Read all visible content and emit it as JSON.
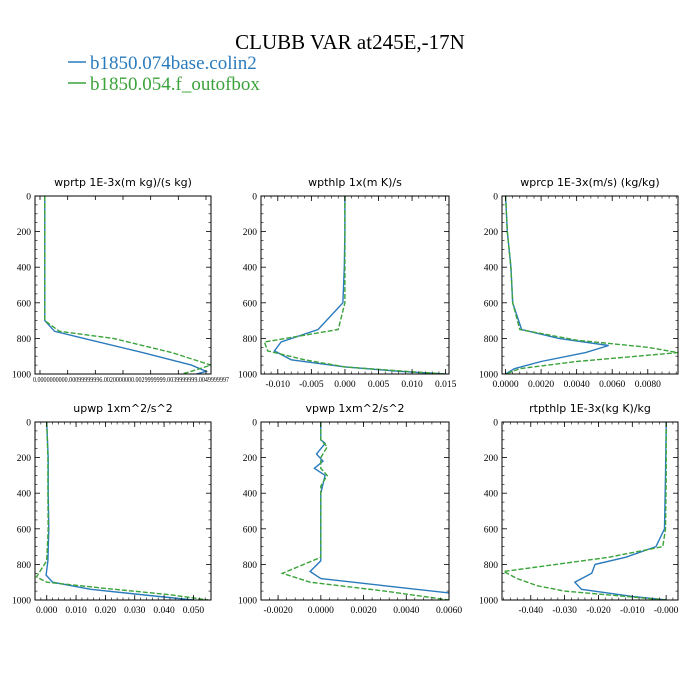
{
  "title": "CLUBB VAR at245E,-17N",
  "colors": {
    "series0": "#2a7bbd",
    "series1": "#3aa33a",
    "frame": "#000000"
  },
  "legend": [
    {
      "label": "b1850.074base.colin2",
      "color": "#2a7bbd"
    },
    {
      "label": "b1850.054.f_outofbox",
      "color": "#3aa33a"
    }
  ],
  "chart_data": [
    {
      "type": "line",
      "title": "wprtp  1E-3x(m kg)/(s kg)",
      "xlabel": "",
      "ylabel": "",
      "xlim": [
        -2e-05,
        0.00034
      ],
      "ylim": [
        1000,
        0
      ],
      "y_reversed": true,
      "yticks": [
        0,
        200,
        400,
        600,
        800,
        1000
      ],
      "xticks": [],
      "xtick_text": "0.0000000000.00099999996.0020000000.0029999999.0039999999.0049999997",
      "series": [
        {
          "name": "b1850.074base.colin2",
          "x": [
            0,
            0,
            0.0,
            2e-05,
            8e-05,
            0.0002,
            0.0003,
            0.00033,
            0.00031
          ],
          "y": [
            0,
            400,
            700,
            760,
            800,
            880,
            950,
            985,
            1000
          ]
        },
        {
          "name": "b1850.054.f_outofbox",
          "x": [
            0,
            0,
            0.0,
            3e-05,
            0.00014,
            0.00026,
            0.00034,
            0.0003,
            0.00028
          ],
          "y": [
            0,
            400,
            700,
            760,
            800,
            880,
            950,
            985,
            1000
          ]
        }
      ]
    },
    {
      "type": "line",
      "title": "wpthlp  1x(m K)/s",
      "xlabel": "",
      "ylabel": "",
      "xlim": [
        -0.0125,
        0.0155
      ],
      "ylim": [
        1000,
        0
      ],
      "y_reversed": true,
      "yticks": [
        0,
        200,
        400,
        600,
        800,
        1000
      ],
      "xticks": [
        "-0.010",
        "-0.005",
        "0.000",
        "0.005",
        "0.010",
        "0.015"
      ],
      "xtick_values": [
        -0.01,
        -0.005,
        0.0,
        0.005,
        0.01,
        0.015
      ],
      "series": [
        {
          "name": "b1850.074base.colin2",
          "x": [
            0.0,
            0.0,
            -0.0001,
            -0.0003,
            -0.004,
            -0.0095,
            -0.0105,
            -0.008,
            0.0,
            0.008,
            0.015
          ],
          "y": [
            0,
            200,
            400,
            600,
            750,
            820,
            870,
            920,
            960,
            985,
            1000
          ]
        },
        {
          "name": "b1850.054.f_outofbox",
          "x": [
            0.0,
            0.0,
            0.0,
            0.0,
            -0.001,
            -0.012,
            -0.0115,
            -0.006,
            0.0,
            0.009,
            0.015
          ],
          "y": [
            0,
            200,
            400,
            600,
            750,
            820,
            870,
            920,
            960,
            985,
            1000
          ]
        }
      ]
    },
    {
      "type": "line",
      "title": "wprcp  1E-3x(m/s) (kg/kg)",
      "xlabel": "",
      "ylabel": "",
      "xlim": [
        -0.0002,
        0.0097
      ],
      "ylim": [
        1000,
        0
      ],
      "y_reversed": true,
      "yticks": [
        0,
        200,
        400,
        600,
        800,
        1000
      ],
      "xticks": [
        "0.0000",
        "0.0020",
        "0.0040",
        "0.0060",
        "0.0080"
      ],
      "xtick_values": [
        0.0,
        0.002,
        0.004,
        0.006,
        0.008
      ],
      "series": [
        {
          "name": "b1850.074base.colin2",
          "x": [
            0.0,
            0.0001,
            0.0003,
            0.0004,
            0.0009,
            0.003,
            0.0058,
            0.0045,
            0.002,
            0.0005,
            0.0
          ],
          "y": [
            0,
            200,
            400,
            600,
            750,
            800,
            840,
            880,
            930,
            970,
            1000
          ]
        },
        {
          "name": "b1850.054.f_outofbox",
          "x": [
            0.0,
            0.0001,
            0.0003,
            0.0004,
            0.0008,
            0.004,
            0.008,
            0.0097,
            0.004,
            0.0008,
            0.0
          ],
          "y": [
            0,
            200,
            400,
            600,
            750,
            810,
            850,
            880,
            930,
            970,
            1000
          ]
        }
      ]
    },
    {
      "type": "line",
      "title": "upwp  1xm^2/s^2",
      "xlabel": "",
      "ylabel": "",
      "xlim": [
        -0.004,
        0.056
      ],
      "ylim": [
        1000,
        0
      ],
      "y_reversed": true,
      "yticks": [
        0,
        200,
        400,
        600,
        800,
        1000
      ],
      "xticks": [
        "0.000",
        "0.010",
        "0.020",
        "0.030",
        "0.040",
        "0.050"
      ],
      "xtick_values": [
        0.0,
        0.01,
        0.02,
        0.03,
        0.04,
        0.05
      ],
      "series": [
        {
          "name": "b1850.074base.colin2",
          "x": [
            0.0,
            0.0005,
            0.0005,
            0.0007,
            0.0004,
            -0.0002,
            0.002,
            0.015,
            0.035,
            0.05
          ],
          "y": [
            0,
            200,
            400,
            600,
            780,
            860,
            900,
            940,
            975,
            1000
          ]
        },
        {
          "name": "b1850.054.f_outofbox",
          "x": [
            0.0,
            0.0004,
            0.0004,
            0.0005,
            0.0,
            -0.0035,
            0.0,
            0.02,
            0.042,
            0.055
          ],
          "y": [
            0,
            200,
            400,
            600,
            780,
            870,
            900,
            935,
            970,
            1000
          ]
        }
      ]
    },
    {
      "type": "line",
      "title": "vpwp  1xm^2/s^2",
      "xlabel": "",
      "ylabel": "",
      "xlim": [
        -0.0028,
        0.006
      ],
      "ylim": [
        1000,
        0
      ],
      "y_reversed": true,
      "yticks": [
        0,
        200,
        400,
        600,
        800,
        1000
      ],
      "xticks": [
        "-0.0020",
        "0.0000",
        "0.0020",
        "0.0040",
        "0.0060"
      ],
      "xtick_values": [
        -0.002,
        0.0,
        0.002,
        0.004,
        0.006
      ],
      "series": [
        {
          "name": "b1850.074base.colin2",
          "x": [
            0.0,
            0.0,
            0.0002,
            -0.0002,
            0.0001,
            -0.0003,
            0.0002,
            0.0,
            0.0,
            -0.0005,
            0.0,
            0.003,
            0.006
          ],
          "y": [
            0,
            100,
            120,
            180,
            220,
            260,
            300,
            400,
            780,
            840,
            880,
            920,
            960
          ]
        },
        {
          "name": "b1850.054.f_outofbox",
          "x": [
            0.0,
            0.0,
            0.0003,
            0.0,
            0.0,
            0.0003,
            0.0,
            0.0,
            0.0,
            -0.0018,
            -0.0005,
            0.003,
            0.006
          ],
          "y": [
            0,
            100,
            140,
            200,
            260,
            300,
            360,
            400,
            760,
            850,
            900,
            950,
            1000
          ]
        }
      ]
    },
    {
      "type": "line",
      "title": "rtpthlp  1E-3x(kg K)/kg",
      "xlabel": "",
      "ylabel": "",
      "xlim": [
        -0.0485,
        0.0035
      ],
      "ylim": [
        1000,
        0
      ],
      "y_reversed": true,
      "yticks": [
        0,
        200,
        400,
        600,
        800,
        1000
      ],
      "xticks": [
        "-0.040",
        "-0.030",
        "-0.020",
        "-0.010",
        "-0.000"
      ],
      "xtick_values": [
        -0.04,
        -0.03,
        -0.02,
        -0.01,
        0.0
      ],
      "series": [
        {
          "name": "b1850.074base.colin2",
          "x": [
            0.0,
            -0.0002,
            -0.0005,
            -0.003,
            -0.012,
            -0.021,
            -0.022,
            -0.027,
            -0.025,
            -0.01,
            0.0
          ],
          "y": [
            0,
            300,
            600,
            700,
            760,
            800,
            850,
            900,
            940,
            980,
            1000
          ]
        },
        {
          "name": "b1850.054.f_outofbox",
          "x": [
            0.0,
            0.0,
            -0.0002,
            -0.001,
            -0.017,
            -0.048,
            -0.044,
            -0.038,
            -0.03,
            -0.012,
            0.0
          ],
          "y": [
            0,
            300,
            600,
            700,
            760,
            840,
            880,
            920,
            950,
            980,
            1000
          ]
        }
      ]
    }
  ]
}
